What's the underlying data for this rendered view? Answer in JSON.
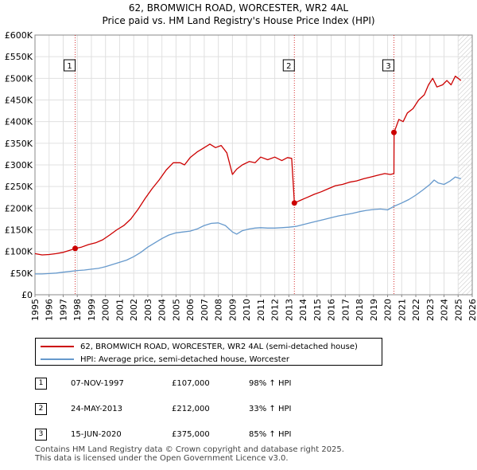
{
  "title_line1": "62, BROMWICH ROAD, WORCESTER, WR2 4AL",
  "title_line2": "Price paid vs. HM Land Registry's House Price Index (HPI)",
  "colors": {
    "property": "#cc0000",
    "hpi": "#6699cc",
    "marker_line": "#cc0000",
    "hatch": "#999999",
    "grid": "#e0e0e0",
    "future_bg": "#eeeeee"
  },
  "chart_data": {
    "type": "line",
    "title": "Price paid vs. HM Land Registry's House Price Index (HPI)",
    "xlim": [
      1995,
      2026
    ],
    "ylim": [
      0,
      600000
    ],
    "x_ticks": [
      "1995",
      "1996",
      "1997",
      "1998",
      "1999",
      "2000",
      "2001",
      "2002",
      "2003",
      "2004",
      "2005",
      "2006",
      "2007",
      "2008",
      "2009",
      "2010",
      "2011",
      "2012",
      "2013",
      "2014",
      "2015",
      "2016",
      "2017",
      "2018",
      "2019",
      "2020",
      "2021",
      "2022",
      "2023",
      "2024",
      "2025",
      "2026"
    ],
    "y_ticks": [
      {
        "value": 0,
        "label": "£0"
      },
      {
        "value": 50000,
        "label": "£50K"
      },
      {
        "value": 100000,
        "label": "£100K"
      },
      {
        "value": 150000,
        "label": "£150K"
      },
      {
        "value": 200000,
        "label": "£200K"
      },
      {
        "value": 250000,
        "label": "£250K"
      },
      {
        "value": 300000,
        "label": "£300K"
      },
      {
        "value": 350000,
        "label": "£350K"
      },
      {
        "value": 400000,
        "label": "£400K"
      },
      {
        "value": 450000,
        "label": "£450K"
      },
      {
        "value": 500000,
        "label": "£500K"
      },
      {
        "value": 550000,
        "label": "£550K"
      },
      {
        "value": 600000,
        "label": "£600K"
      }
    ],
    "future_from": 2025.0,
    "series": [
      {
        "name": "62, BROMWICH ROAD, WORCESTER, WR2 4AL (semi-detached house)",
        "color": "#cc0000",
        "x": [
          1995.0,
          1995.5,
          1996.0,
          1996.5,
          1997.0,
          1997.5,
          1997.85,
          1998.3,
          1998.8,
          1999.3,
          1999.8,
          2000.3,
          2000.8,
          2001.3,
          2001.8,
          2002.3,
          2002.8,
          2003.3,
          2003.8,
          2004.3,
          2004.8,
          2005.3,
          2005.6,
          2006.0,
          2006.5,
          2007.0,
          2007.4,
          2007.8,
          2008.2,
          2008.6,
          2009.0,
          2009.3,
          2009.7,
          2010.2,
          2010.6,
          2011.0,
          2011.5,
          2012.0,
          2012.5,
          2012.9,
          2013.2,
          2013.39,
          2013.8,
          2014.3,
          2014.8,
          2015.3,
          2015.8,
          2016.3,
          2016.8,
          2017.3,
          2017.8,
          2018.3,
          2018.8,
          2019.3,
          2019.8,
          2020.2,
          2020.45,
          2020.46,
          2020.8,
          2021.1,
          2021.4,
          2021.8,
          2022.2,
          2022.6,
          2022.9,
          2023.2,
          2023.5,
          2023.9,
          2024.2,
          2024.5,
          2024.8,
          2025.0,
          2025.2
        ],
        "values": [
          95000,
          92000,
          93000,
          95000,
          98000,
          103000,
          107000,
          110000,
          116000,
          120000,
          127000,
          138000,
          150000,
          160000,
          175000,
          197000,
          222000,
          245000,
          265000,
          288000,
          305000,
          305000,
          300000,
          317000,
          330000,
          340000,
          348000,
          340000,
          345000,
          328000,
          278000,
          290000,
          300000,
          308000,
          305000,
          318000,
          312000,
          318000,
          310000,
          317000,
          315000,
          212000,
          218000,
          225000,
          232000,
          238000,
          245000,
          252000,
          255000,
          260000,
          263000,
          268000,
          272000,
          276000,
          280000,
          278000,
          280000,
          375000,
          405000,
          400000,
          420000,
          430000,
          450000,
          462000,
          485000,
          500000,
          480000,
          485000,
          495000,
          485000,
          505000,
          500000,
          495000
        ]
      },
      {
        "name": "HPI: Average price, semi-detached house, Worcester",
        "color": "#6699cc",
        "x": [
          1995.0,
          1995.5,
          1996.0,
          1996.5,
          1997.0,
          1997.5,
          1998.0,
          1998.5,
          1999.0,
          1999.5,
          2000.0,
          2000.5,
          2001.0,
          2001.5,
          2002.0,
          2002.5,
          2003.0,
          2003.5,
          2004.0,
          2004.5,
          2005.0,
          2005.5,
          2006.0,
          2006.5,
          2007.0,
          2007.5,
          2008.0,
          2008.5,
          2009.0,
          2009.3,
          2009.7,
          2010.2,
          2010.6,
          2011.0,
          2011.5,
          2012.0,
          2012.5,
          2013.0,
          2013.5,
          2014.0,
          2014.5,
          2015.0,
          2015.5,
          2016.0,
          2016.5,
          2017.0,
          2017.5,
          2018.0,
          2018.5,
          2019.0,
          2019.5,
          2020.0,
          2020.5,
          2021.0,
          2021.5,
          2022.0,
          2022.5,
          2023.0,
          2023.3,
          2023.6,
          2024.0,
          2024.4,
          2024.8,
          2025.2
        ],
        "values": [
          48000,
          48000,
          49000,
          50000,
          52000,
          54000,
          56000,
          57000,
          59000,
          61000,
          65000,
          70000,
          75000,
          80000,
          88000,
          98000,
          110000,
          120000,
          130000,
          138000,
          143000,
          145000,
          147000,
          152000,
          160000,
          165000,
          166000,
          160000,
          145000,
          140000,
          148000,
          152000,
          154000,
          155000,
          154000,
          154000,
          155000,
          156000,
          158000,
          162000,
          166000,
          170000,
          174000,
          178000,
          182000,
          185000,
          188000,
          192000,
          195000,
          197000,
          198000,
          196000,
          205000,
          212000,
          220000,
          230000,
          242000,
          255000,
          265000,
          258000,
          255000,
          262000,
          272000,
          268000
        ]
      }
    ],
    "events": [
      {
        "label": "1",
        "x": 1997.85,
        "price": 107000
      },
      {
        "label": "2",
        "x": 2013.39,
        "price": 212000
      },
      {
        "label": "3",
        "x": 2020.45,
        "price": 375000
      }
    ]
  },
  "legend": {
    "property_label": "62, BROMWICH ROAD, WORCESTER, WR2 4AL (semi-detached house)",
    "hpi_label": "HPI: Average price, semi-detached house, Worcester"
  },
  "transactions": [
    {
      "num": "1",
      "date": "07-NOV-1997",
      "price": "£107,000",
      "hpi": "98% ↑ HPI"
    },
    {
      "num": "2",
      "date": "24-MAY-2013",
      "price": "£212,000",
      "hpi": "33% ↑ HPI"
    },
    {
      "num": "3",
      "date": "15-JUN-2020",
      "price": "£375,000",
      "hpi": "85% ↑ HPI"
    }
  ],
  "footer": "Contains HM Land Registry data © Crown copyright and database right 2025.\nThis data is licensed under the Open Government Licence v3.0."
}
